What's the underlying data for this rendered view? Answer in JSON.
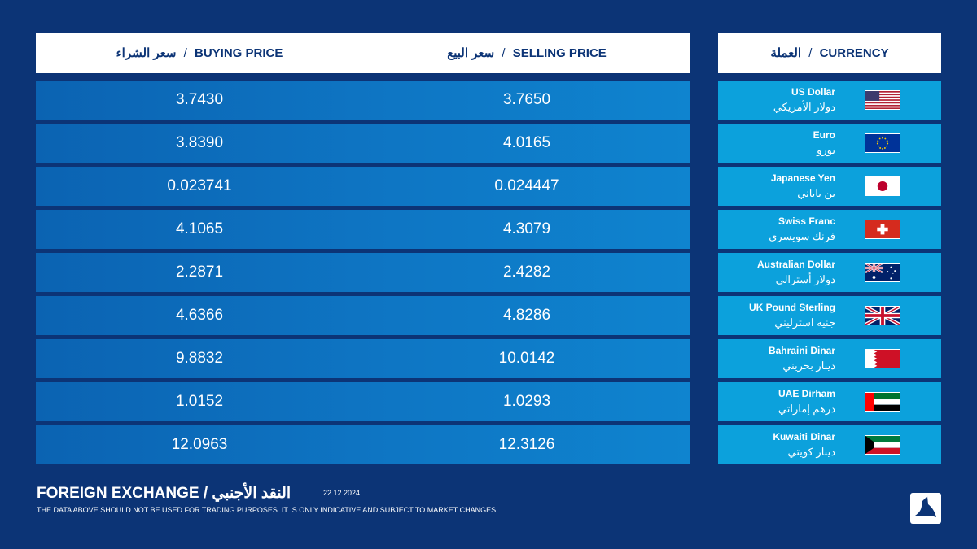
{
  "header": {
    "buying": {
      "ar": "سعر الشراء",
      "en": "BUYING PRICE"
    },
    "selling": {
      "ar": "سعر البيع",
      "en": "SELLING PRICE"
    },
    "currency": {
      "ar": "العملة",
      "en": "CURRENCY"
    },
    "separator": "/"
  },
  "rates": [
    {
      "en": "US Dollar",
      "ar": "دولار الأمريكي",
      "flag": "us-flag-icon",
      "buy": "3.7430",
      "sell": "3.7650"
    },
    {
      "en": "Euro",
      "ar": "يورو",
      "flag": "eu-flag-icon",
      "buy": "3.8390",
      "sell": "4.0165"
    },
    {
      "en": "Japanese Yen",
      "ar": "ين ياباني",
      "flag": "japan-flag-icon",
      "buy": "0.023741",
      "sell": "0.024447"
    },
    {
      "en": "Swiss Franc",
      "ar": "فرنك سويسري",
      "flag": "swiss-flag-icon",
      "buy": "4.1065",
      "sell": "4.3079"
    },
    {
      "en": "Australian Dollar",
      "ar": "دولار أسترالي",
      "flag": "australia-flag-icon",
      "buy": "2.2871",
      "sell": "2.4282"
    },
    {
      "en": "UK Pound Sterling",
      "ar": "جنيه استرليني",
      "flag": "uk-flag-icon",
      "buy": "4.6366",
      "sell": "4.8286"
    },
    {
      "en": "Bahraini Dinar",
      "ar": "دينار بحريني",
      "flag": "bahrain-flag-icon",
      "buy": "9.8832",
      "sell": "10.0142"
    },
    {
      "en": "UAE Dirham",
      "ar": "درهم إماراتي",
      "flag": "uae-flag-icon",
      "buy": "1.0152",
      "sell": "1.0293"
    },
    {
      "en": "Kuwaiti Dinar",
      "ar": "دينار كويتي",
      "flag": "kuwait-flag-icon",
      "buy": "12.0963",
      "sell": "12.3126"
    }
  ],
  "footer": {
    "title_en": "FOREIGN EXCHANGE",
    "title_ar": "النقد الأجنبي",
    "date": "22.12.2024",
    "disclaimer": "THE DATA ABOVE SHOULD NOT BE USED FOR TRADING PURPOSES. IT IS ONLY INDICATIVE AND SUBJECT TO MARKET CHANGES."
  },
  "colors": {
    "background": "#0c3476",
    "price_row": "#0e76c4",
    "currency_row": "#0ca1dc",
    "header": "#ffffff"
  },
  "logo_icon": "bank-logo-icon"
}
